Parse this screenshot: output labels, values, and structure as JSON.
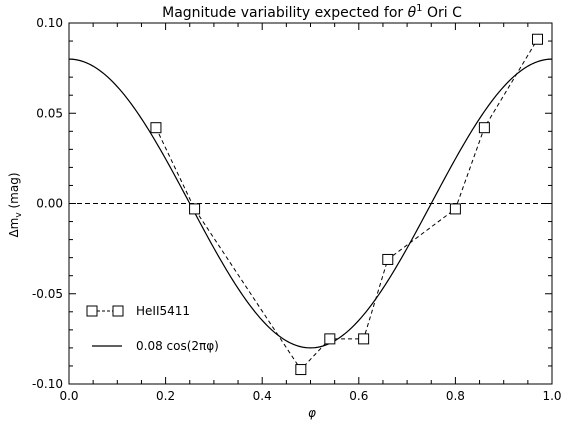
{
  "chart_data": {
    "type": "line",
    "title": {
      "prefix": "Magnitude variability expected for ",
      "symbol": "θ",
      "superscript": "1",
      "suffix": " Ori C"
    },
    "xlabel": "φ",
    "ylabel": {
      "main": "Δm",
      "subscript": "v",
      "unit": " (mag)"
    },
    "xlim": [
      0.0,
      1.0
    ],
    "ylim": [
      -0.1,
      0.1
    ],
    "x_ticks": [
      "0.0",
      "0.2",
      "0.4",
      "0.6",
      "0.8",
      "1.0"
    ],
    "y_ticks": [
      "-0.10",
      "-0.05",
      "0.00",
      "0.05",
      "0.10"
    ],
    "grid": false,
    "legend_position": "bottom-left",
    "series": [
      {
        "name": "HeII5411",
        "style": "dashed-with-square-markers",
        "x": [
          0.18,
          0.26,
          0.48,
          0.54,
          0.61,
          0.66,
          0.8,
          0.86,
          0.97
        ],
        "y": [
          0.042,
          -0.003,
          -0.092,
          -0.075,
          -0.075,
          -0.031,
          -0.003,
          0.042,
          0.091
        ]
      },
      {
        "name": "0.08 cos(2πφ)",
        "style": "solid",
        "function": "0.08*cos(2*pi*x)"
      }
    ],
    "reference_line": {
      "y": 0.0,
      "style": "dashed"
    }
  }
}
